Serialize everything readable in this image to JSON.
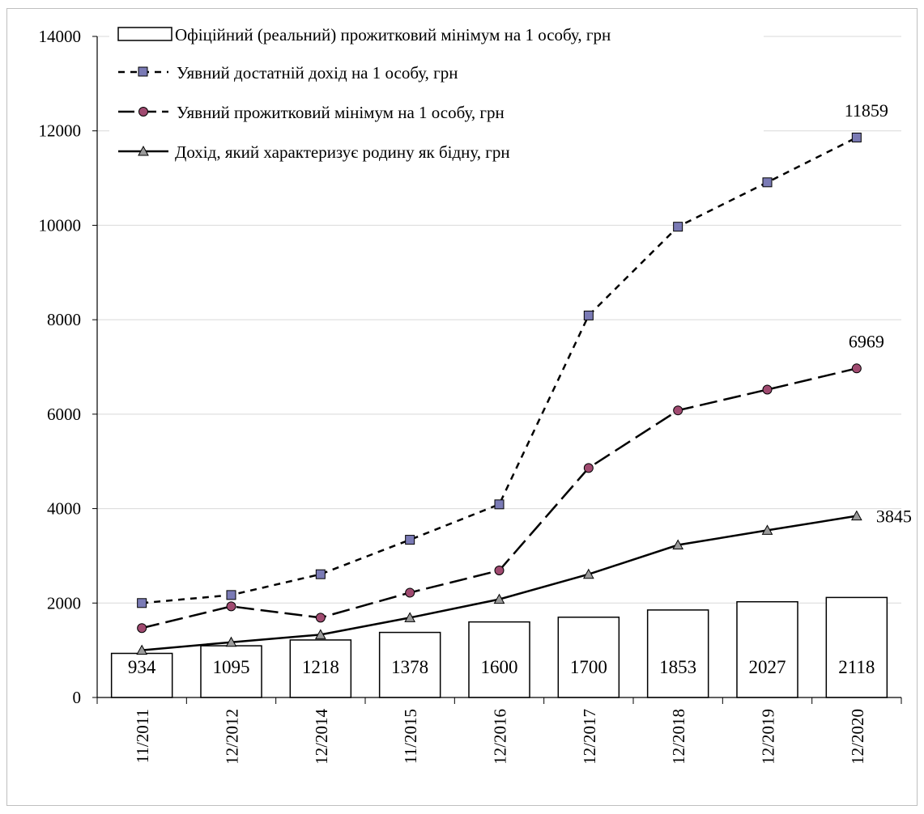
{
  "chart_data": {
    "type": "bar",
    "categories": [
      "11/2011",
      "12/2012",
      "12/2014",
      "11/2015",
      "12/2016",
      "12/2017",
      "12/2018",
      "12/2019",
      "12/2020"
    ],
    "ylim": [
      0,
      14000
    ],
    "yticks": [
      0,
      2000,
      4000,
      6000,
      8000,
      10000,
      12000,
      14000
    ],
    "grid": true,
    "legend_position": "top-left",
    "bars": {
      "name": "Офіційний (реальний) прожитковий  мінімум на 1 особу, грн",
      "values": [
        934,
        1095,
        1218,
        1378,
        1600,
        1700,
        1853,
        2027,
        2118
      ],
      "color": "#ffffff",
      "labels": [
        "934",
        "1095",
        "1218",
        "1378",
        "1600",
        "1700",
        "1853",
        "2027",
        "2118"
      ]
    },
    "series": [
      {
        "name": "Уявний достатній дохід на 1 особу, грн",
        "type": "line",
        "dash": "short",
        "marker": "square",
        "marker_color": "#7a7ab5",
        "values": [
          2000,
          2170,
          2610,
          3340,
          4090,
          8090,
          9970,
          10910,
          11859
        ],
        "end_label": "11859"
      },
      {
        "name": "Уявний прожитковий мінімум на 1 особу, грн",
        "type": "line",
        "dash": "long",
        "marker": "circle",
        "marker_color": "#a04a70",
        "values": [
          1470,
          1930,
          1690,
          2220,
          2690,
          4860,
          6080,
          6520,
          6969
        ],
        "end_label": "6969"
      },
      {
        "name": "Дохід, який характеризує родину як бідну, грн",
        "type": "line",
        "dash": "solid",
        "marker": "triangle",
        "marker_color": "#9a9a9a",
        "values": [
          1000,
          1170,
          1330,
          1690,
          2080,
          2610,
          3230,
          3540,
          3845
        ],
        "end_label": "3845"
      }
    ]
  }
}
